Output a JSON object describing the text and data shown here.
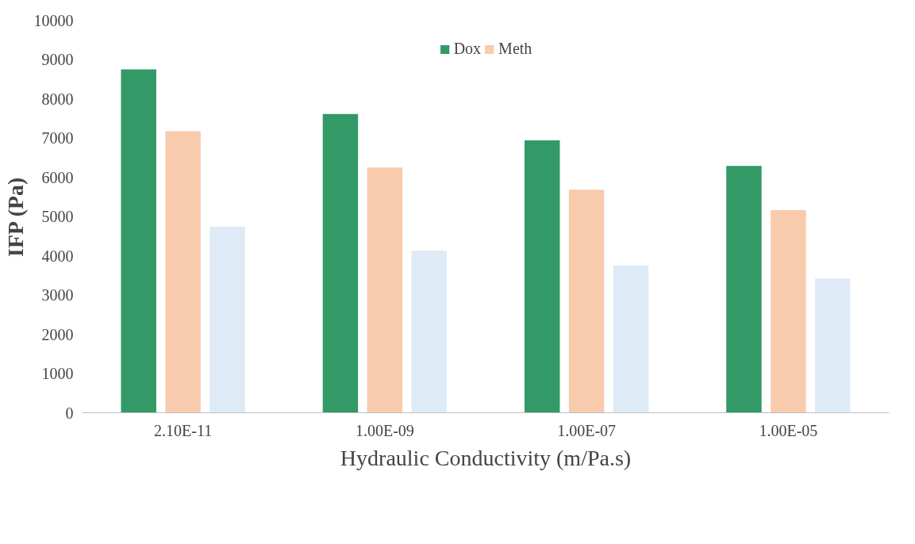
{
  "chart_data": {
    "type": "bar",
    "xlabel": "Hydraulic Conductivity (m/Pa.s)",
    "ylabel": "IFP (Pa)",
    "categories": [
      "2.10E-11",
      "1.00E-09",
      "1.00E-07",
      "1.00E-05"
    ],
    "series": [
      {
        "name": "Dox",
        "color": "#339966",
        "values": [
          8750,
          7610,
          6940,
          6290
        ]
      },
      {
        "name": "Meth",
        "color": "#f8cbad",
        "values": [
          7170,
          6250,
          5680,
          5160
        ]
      },
      {
        "color": "#deebf7",
        "values": [
          4740,
          4130,
          3750,
          3420
        ]
      }
    ],
    "ylim": [
      0,
      10000
    ],
    "yticks": [
      0,
      1000,
      2000,
      3000,
      4000,
      5000,
      6000,
      7000,
      8000,
      9000,
      10000
    ],
    "grid": false,
    "legend": "top"
  }
}
